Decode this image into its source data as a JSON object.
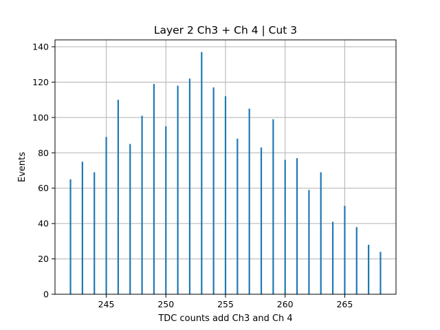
{
  "chart_data": {
    "type": "bar",
    "title": "Layer 2 Ch3 + Ch 4 | Cut 3",
    "xlabel": "TDC counts add Ch3 and Ch 4",
    "ylabel": "Events",
    "xlim": [
      240.7,
      269.3
    ],
    "ylim": [
      0,
      143.9
    ],
    "xticks": [
      245,
      250,
      255,
      260,
      265
    ],
    "yticks": [
      0,
      20,
      40,
      60,
      80,
      100,
      120,
      140
    ],
    "grid": true,
    "bar_color": "#1f77b4",
    "grid_color": "#b0b0b0",
    "x": [
      242,
      243,
      244,
      245,
      246,
      247,
      248,
      249,
      250,
      251,
      252,
      253,
      254,
      255,
      256,
      257,
      258,
      259,
      260,
      261,
      262,
      263,
      264,
      265,
      266,
      267,
      268
    ],
    "values": [
      65,
      75,
      69,
      89,
      110,
      85,
      101,
      119,
      95,
      118,
      122,
      137,
      117,
      112,
      88,
      105,
      83,
      99,
      76,
      77,
      59,
      69,
      41,
      50,
      38,
      28,
      24
    ]
  }
}
